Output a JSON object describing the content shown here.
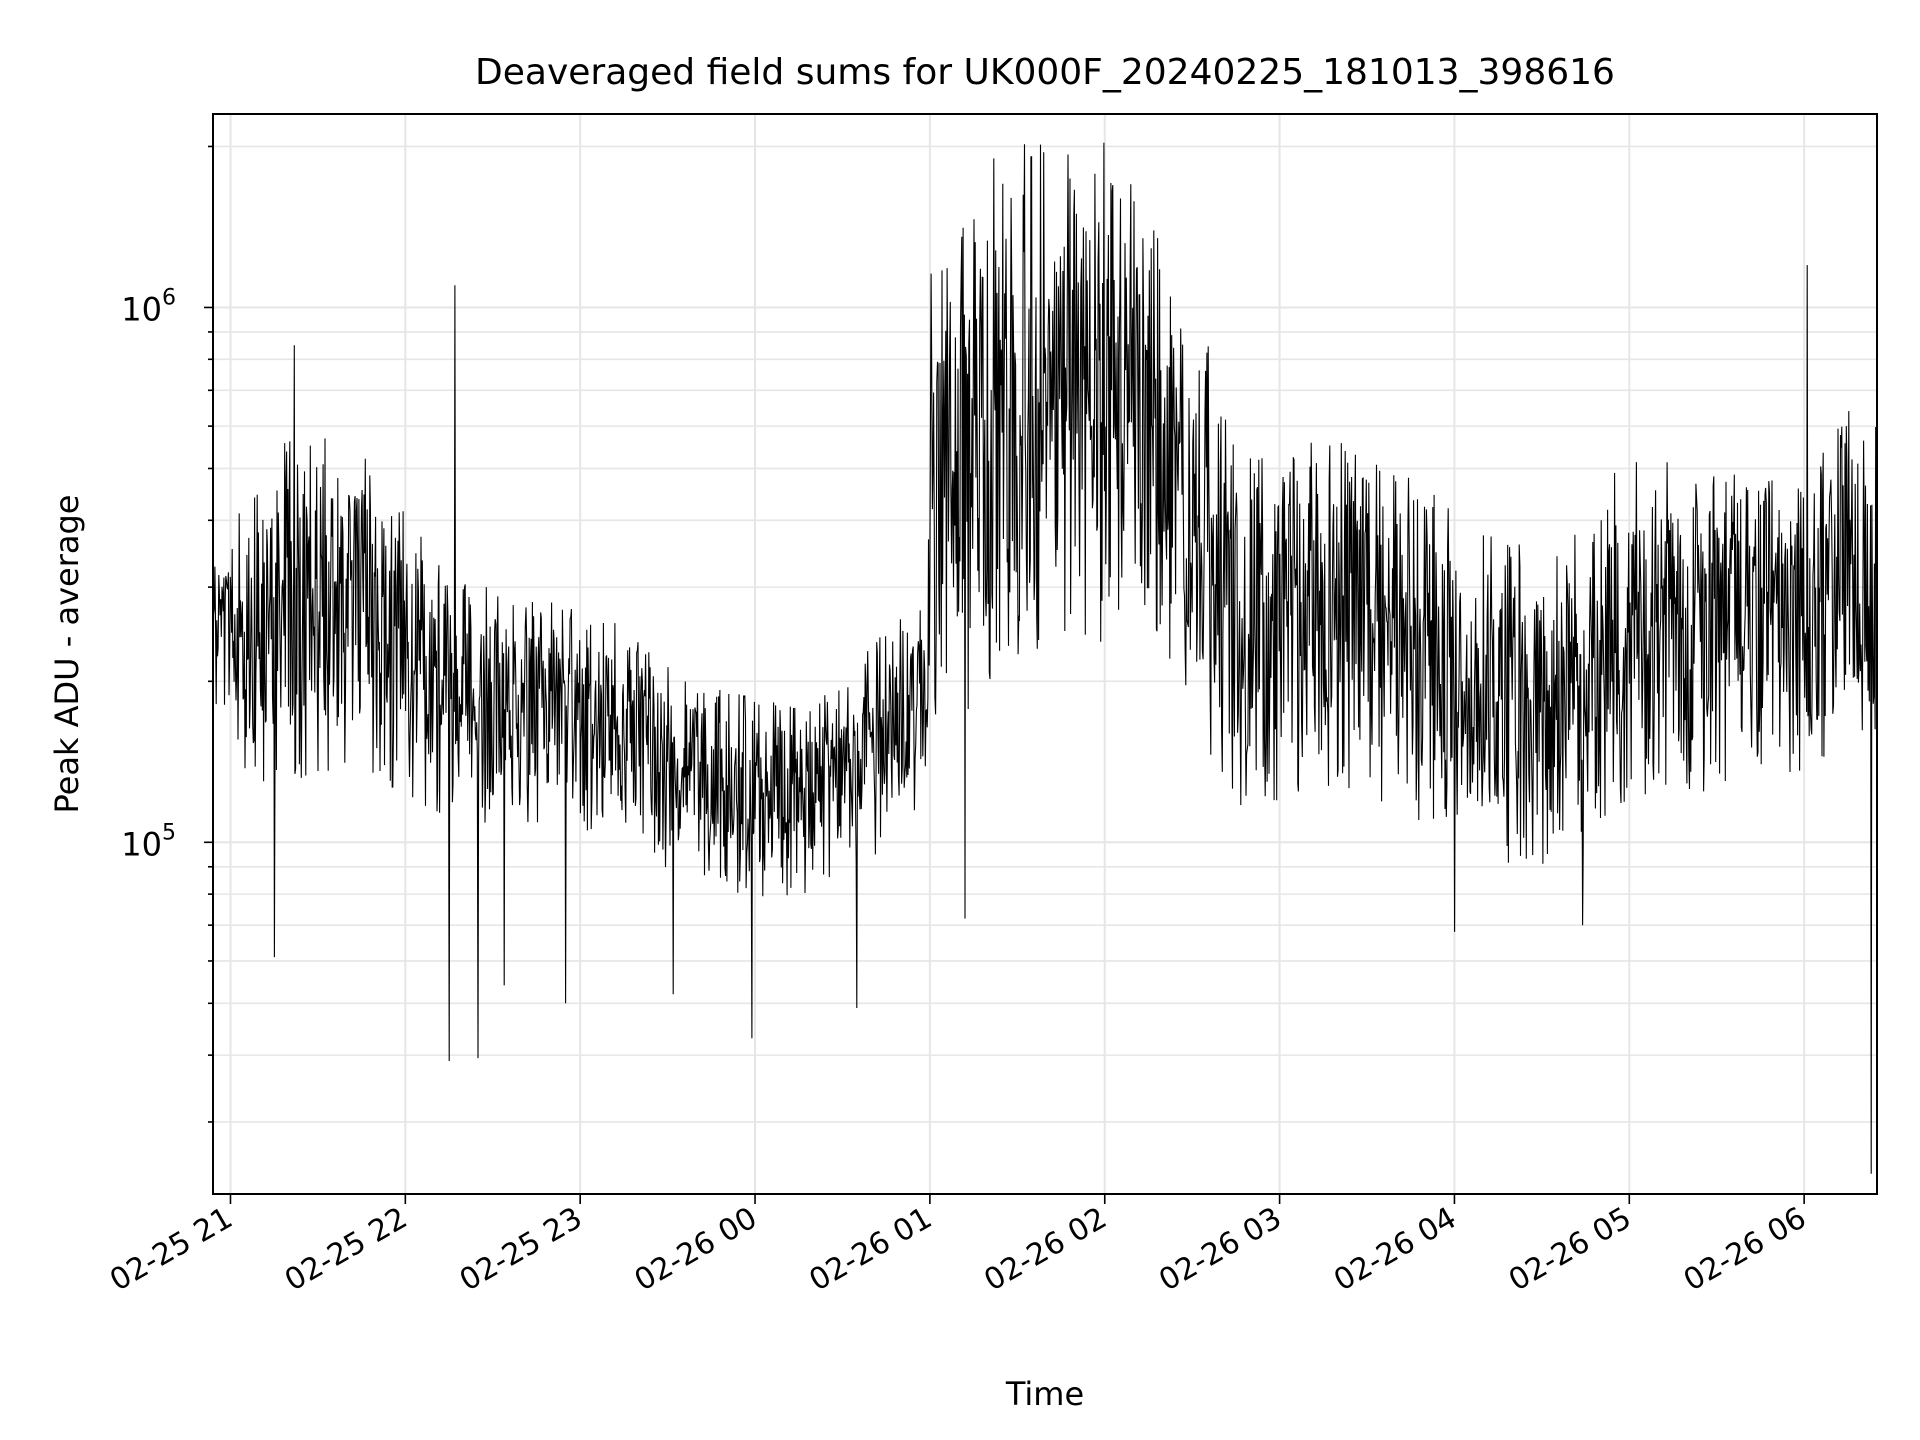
{
  "chart_data": {
    "type": "line",
    "title": "Deaveraged field sums for UK000F_20240225_181013_398616",
    "xlabel": "Time",
    "ylabel": "Peak ADU - average",
    "yscale": "log",
    "ylim": [
      22000,
      2300000
    ],
    "xlim": [
      "2024-02-25 20:54",
      "2024-02-26 06:25"
    ],
    "grid": true,
    "line_color": "#000000",
    "x_ticks": [
      {
        "label": "02-25 21",
        "value": "2024-02-25 21:00"
      },
      {
        "label": "02-25 22",
        "value": "2024-02-25 22:00"
      },
      {
        "label": "02-25 23",
        "value": "2024-02-25 23:00"
      },
      {
        "label": "02-26 00",
        "value": "2024-02-26 00:00"
      },
      {
        "label": "02-26 01",
        "value": "2024-02-26 01:00"
      },
      {
        "label": "02-26 02",
        "value": "2024-02-26 02:00"
      },
      {
        "label": "02-26 03",
        "value": "2024-02-26 03:00"
      },
      {
        "label": "02-26 04",
        "value": "2024-02-26 04:00"
      },
      {
        "label": "02-26 05",
        "value": "2024-02-26 05:00"
      },
      {
        "label": "02-26 06",
        "value": "2024-02-26 06:00"
      }
    ],
    "y_ticks": [
      {
        "label": "10",
        "exp": "5",
        "value": 100000
      },
      {
        "label": "10",
        "exp": "6",
        "value": 1000000
      }
    ],
    "series": [
      {
        "x": [
          "2024-02-25 20:54",
          "2024-02-25 21:05",
          "2024-02-25 21:15",
          "2024-02-25 21:30",
          "2024-02-25 21:45",
          "2024-02-25 22:00",
          "2024-02-25 22:15",
          "2024-02-25 22:30",
          "2024-02-25 22:45",
          "2024-02-25 23:00",
          "2024-02-25 23:15",
          "2024-02-25 23:30",
          "2024-02-25 23:45",
          "2024-02-26 00:00",
          "2024-02-26 00:15",
          "2024-02-26 00:30",
          "2024-02-26 00:45",
          "2024-02-26 00:59",
          "2024-02-26 01:00",
          "2024-02-26 01:15",
          "2024-02-26 01:30",
          "2024-02-26 01:45",
          "2024-02-26 02:00",
          "2024-02-26 02:15",
          "2024-02-26 02:30",
          "2024-02-26 02:39",
          "2024-02-26 02:45",
          "2024-02-26 03:00",
          "2024-02-26 03:15",
          "2024-02-26 03:30",
          "2024-02-26 03:45",
          "2024-02-26 04:00",
          "2024-02-26 04:15",
          "2024-02-26 04:30",
          "2024-02-26 04:45",
          "2024-02-26 05:00",
          "2024-02-26 05:15",
          "2024-02-26 05:30",
          "2024-02-26 05:45",
          "2024-02-26 06:00",
          "2024-02-26 06:15",
          "2024-02-26 06:25"
        ],
        "values": [
          270000,
          250000,
          260000,
          255000,
          260000,
          230000,
          200000,
          185000,
          190000,
          185000,
          175000,
          150000,
          140000,
          135000,
          130000,
          145000,
          165000,
          185000,
          480000,
          500000,
          560000,
          620000,
          590000,
          520000,
          380000,
          330000,
          240000,
          240000,
          270000,
          250000,
          230000,
          200000,
          180000,
          175000,
          185000,
          270000,
          260000,
          255000,
          260000,
          245000,
          320000,
          300000
        ],
        "upper_envelope": [
          320000,
          400000,
          470000,
          480000,
          470000,
          370000,
          280000,
          270000,
          260000,
          260000,
          230000,
          200000,
          180000,
          175000,
          170000,
          185000,
          230000,
          260000,
          1000000,
          1200000,
          1500000,
          1600000,
          1550000,
          1300000,
          680000,
          700000,
          430000,
          450000,
          480000,
          460000,
          420000,
          360000,
          320000,
          300000,
          330000,
          470000,
          440000,
          430000,
          420000,
          410000,
          550000,
          520000
        ],
        "lower_envelope": [
          200000,
          160000,
          150000,
          160000,
          160000,
          140000,
          130000,
          120000,
          125000,
          120000,
          115000,
          100000,
          95000,
          90000,
          90000,
          100000,
          110000,
          130000,
          220000,
          230000,
          280000,
          300000,
          300000,
          280000,
          200000,
          170000,
          140000,
          140000,
          150000,
          145000,
          135000,
          120000,
          110000,
          105000,
          110000,
          150000,
          150000,
          150000,
          155000,
          150000,
          180000,
          170000
        ],
        "spikes": [
          {
            "x": "2024-02-25 21:15",
            "y": 61000
          },
          {
            "x": "2024-02-25 21:22",
            "y": 850000
          },
          {
            "x": "2024-02-25 22:17",
            "y": 1100000
          },
          {
            "x": "2024-02-25 22:15",
            "y": 39000
          },
          {
            "x": "2024-02-25 22:25",
            "y": 39500
          },
          {
            "x": "2024-02-25 22:34",
            "y": 54000
          },
          {
            "x": "2024-02-25 22:55",
            "y": 50000
          },
          {
            "x": "2024-02-25 23:32",
            "y": 52000
          },
          {
            "x": "2024-02-25 23:59",
            "y": 43000
          },
          {
            "x": "2024-02-26 00:35",
            "y": 49000
          },
          {
            "x": "2024-02-26 01:12",
            "y": 72000
          },
          {
            "x": "2024-02-26 01:22",
            "y": 1900000
          },
          {
            "x": "2024-02-26 01:39",
            "y": 1950000
          },
          {
            "x": "2024-02-26 02:09",
            "y": 1700000
          },
          {
            "x": "2024-02-26 04:00",
            "y": 68000
          },
          {
            "x": "2024-02-26 04:44",
            "y": 70000
          },
          {
            "x": "2024-02-26 06:01",
            "y": 1200000
          },
          {
            "x": "2024-02-26 06:23",
            "y": 24000
          }
        ]
      }
    ]
  }
}
